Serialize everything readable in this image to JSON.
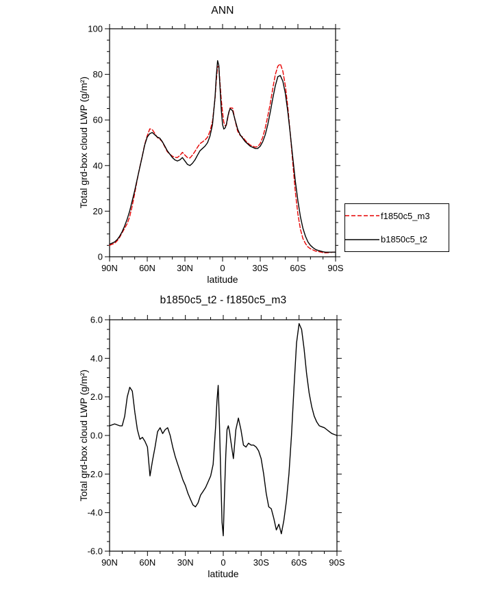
{
  "figure": {
    "background": "#ffffff"
  },
  "chart_data": [
    {
      "type": "line",
      "title": "ANN",
      "xlabel": "latitude",
      "ylabel": "Total grd-box cloud LWP (g/m²)",
      "xlim": [
        90,
        -90
      ],
      "ylim": [
        0,
        100
      ],
      "xticks": [
        90,
        60,
        30,
        0,
        -30,
        -60,
        -90
      ],
      "xtick_labels": [
        "90N",
        "60N",
        "30N",
        "0",
        "30S",
        "60S",
        "90S"
      ],
      "x_minor_step": 10,
      "yticks": [
        0,
        20,
        40,
        60,
        80,
        100
      ],
      "ytick_labels": [
        "0",
        "20",
        "40",
        "60",
        "80",
        "100"
      ],
      "y_minor_step": 5,
      "grid": false,
      "legend_position": "outside-right-bottom",
      "x": [
        90,
        88,
        86,
        84,
        82,
        80,
        78,
        76,
        74,
        72,
        70,
        68,
        66,
        64,
        62,
        60,
        58,
        56,
        54,
        52,
        50,
        48,
        46,
        44,
        42,
        40,
        38,
        36,
        34,
        32,
        30,
        28,
        26,
        24,
        22,
        20,
        18,
        16,
        14,
        12,
        10,
        8,
        6,
        5,
        4,
        3,
        2,
        1,
        0,
        -1,
        -2,
        -3,
        -4,
        -5,
        -6,
        -8,
        -10,
        -12,
        -14,
        -16,
        -18,
        -20,
        -22,
        -24,
        -26,
        -28,
        -30,
        -32,
        -34,
        -36,
        -38,
        -40,
        -42,
        -44,
        -46,
        -48,
        -50,
        -52,
        -54,
        -56,
        -58,
        -60,
        -62,
        -64,
        -66,
        -68,
        -70,
        -72,
        -74,
        -76,
        -78,
        -80,
        -82,
        -84,
        -86,
        -88,
        -90
      ],
      "series": [
        {
          "name": "f1850c5_m3",
          "color": "#e60000",
          "dash": "6,3",
          "values": [
            5.0,
            5.5,
            5.9,
            7.0,
            8.5,
            10.5,
            12.5,
            14.5,
            17.5,
            22.2,
            27.8,
            33.7,
            39.2,
            44.1,
            49.3,
            53.1,
            56.1,
            55.8,
            54.1,
            52.3,
            51.6,
            50.4,
            48.2,
            46.1,
            45.0,
            44.1,
            43.6,
            43.5,
            44.4,
            45.8,
            44.6,
            43.5,
            43.3,
            44.6,
            46.2,
            48.0,
            49.6,
            50.4,
            51.2,
            52.4,
            55.1,
            59.5,
            69.5,
            77.2,
            83.4,
            83.5,
            76.0,
            68.5,
            63.2,
            59.0,
            57.5,
            57.7,
            60.5,
            63.3,
            65.3,
            65.2,
            59.7,
            55.1,
            53.2,
            52.5,
            51.1,
            49.9,
            49.0,
            48.5,
            48.1,
            48.3,
            49.7,
            52.5,
            56.5,
            61.7,
            67.3,
            73.8,
            79.9,
            83.6,
            84.6,
            81.4,
            74.9,
            65.5,
            53.5,
            40.5,
            28.2,
            18.7,
            12.0,
            8.0,
            5.8,
            4.3,
            3.5,
            3.0,
            2.5,
            2.3,
            2.1,
            1.8,
            1.7,
            1.8,
            1.9,
            2.0,
            2.0
          ]
        },
        {
          "name": "b1850c5_t2",
          "color": "#000000",
          "dash": null,
          "values": [
            5.5,
            6.0,
            6.5,
            7.5,
            9.0,
            11.0,
            13.5,
            16.5,
            20.0,
            24.5,
            29.0,
            34.0,
            39.0,
            44.0,
            49.0,
            52.5,
            54.0,
            54.5,
            53.5,
            52.5,
            52.0,
            50.5,
            48.5,
            46.5,
            45.0,
            43.5,
            42.5,
            42.0,
            42.5,
            43.5,
            42.0,
            40.5,
            40.0,
            41.0,
            42.5,
            44.5,
            46.5,
            47.5,
            48.5,
            50.0,
            53.0,
            58.0,
            70.0,
            79.0,
            86.0,
            84.0,
            74.0,
            64.0,
            58.0,
            56.0,
            56.5,
            58.0,
            61.0,
            63.5,
            65.0,
            64.0,
            60.0,
            56.0,
            53.5,
            52.0,
            50.5,
            49.5,
            48.5,
            48.0,
            47.5,
            47.5,
            48.5,
            50.5,
            53.5,
            58.0,
            63.5,
            69.5,
            75.0,
            79.0,
            79.5,
            77.0,
            71.5,
            63.5,
            53.5,
            43.0,
            33.0,
            24.5,
            17.5,
            12.5,
            9.0,
            6.5,
            5.0,
            4.0,
            3.2,
            2.8,
            2.5,
            2.2,
            2.0,
            2.0,
            2.0,
            2.0,
            2.0
          ]
        }
      ]
    },
    {
      "type": "line",
      "title": "b1850c5_t2 - f1850c5_m3",
      "xlabel": "latitude",
      "ylabel": "Total grd-box cloud LWP (g/m²)",
      "xlim": [
        90,
        -90
      ],
      "ylim": [
        -6,
        6
      ],
      "xticks": [
        90,
        60,
        30,
        0,
        -30,
        -60,
        -90
      ],
      "xtick_labels": [
        "90N",
        "60N",
        "30N",
        "0",
        "30S",
        "60S",
        "90S"
      ],
      "x_minor_step": 10,
      "yticks": [
        -6,
        -4,
        -2,
        0,
        2,
        4,
        6
      ],
      "ytick_labels": [
        "-6.0",
        "-4.0",
        "-2.0",
        "0.0",
        "2.0",
        "4.0",
        "6.0"
      ],
      "y_minor_step": 0.5,
      "grid": false,
      "x": [
        90,
        88,
        86,
        84,
        82,
        80,
        78,
        76,
        74,
        72,
        70,
        68,
        66,
        64,
        62,
        60,
        58,
        56,
        54,
        52,
        50,
        48,
        46,
        44,
        42,
        40,
        38,
        36,
        34,
        32,
        30,
        28,
        26,
        24,
        22,
        20,
        18,
        16,
        14,
        12,
        10,
        8,
        6,
        5,
        4,
        3,
        2,
        1,
        0,
        -1,
        -2,
        -3,
        -4,
        -5,
        -6,
        -8,
        -10,
        -12,
        -14,
        -16,
        -18,
        -20,
        -22,
        -24,
        -26,
        -28,
        -30,
        -32,
        -34,
        -36,
        -38,
        -40,
        -42,
        -44,
        -46,
        -48,
        -50,
        -52,
        -54,
        -56,
        -58,
        -60,
        -62,
        -64,
        -66,
        -68,
        -70,
        -72,
        -74,
        -76,
        -78,
        -80,
        -82,
        -84,
        -86,
        -88,
        -90
      ],
      "series": [
        {
          "name": "b1850c5_t2 - f1850c5_m3",
          "color": "#000000",
          "dash": null,
          "values": [
            0.5,
            0.55,
            0.6,
            0.55,
            0.5,
            0.5,
            1.0,
            2.0,
            2.5,
            2.3,
            1.2,
            0.3,
            -0.2,
            -0.1,
            -0.3,
            -0.6,
            -2.1,
            -1.3,
            -0.6,
            0.2,
            0.4,
            0.1,
            0.3,
            0.4,
            0.0,
            -0.6,
            -1.1,
            -1.5,
            -1.9,
            -2.3,
            -2.6,
            -3.0,
            -3.3,
            -3.6,
            -3.7,
            -3.5,
            -3.1,
            -2.9,
            -2.7,
            -2.4,
            -2.1,
            -1.5,
            0.5,
            1.8,
            2.6,
            0.5,
            -2.0,
            -4.5,
            -5.2,
            -3.0,
            -1.0,
            0.3,
            0.5,
            0.2,
            -0.3,
            -1.2,
            0.3,
            0.9,
            0.3,
            -0.5,
            -0.6,
            -0.4,
            -0.5,
            -0.5,
            -0.6,
            -0.8,
            -1.2,
            -2.0,
            -3.0,
            -3.7,
            -3.8,
            -4.3,
            -4.9,
            -4.6,
            -5.1,
            -4.4,
            -3.4,
            -2.0,
            0.0,
            2.5,
            4.8,
            5.8,
            5.5,
            4.5,
            3.2,
            2.2,
            1.5,
            1.0,
            0.7,
            0.5,
            0.45,
            0.4,
            0.3,
            0.2,
            0.1,
            0.05,
            0.0
          ]
        }
      ]
    }
  ]
}
